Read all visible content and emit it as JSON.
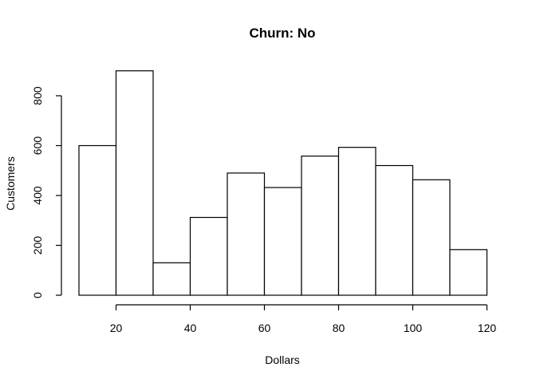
{
  "chart_data": {
    "type": "bar",
    "title": "Churn: No",
    "xlabel": "Dollars",
    "ylabel": "Customers",
    "bins": [
      {
        "start": 10,
        "end": 20,
        "count": 600
      },
      {
        "start": 20,
        "end": 30,
        "count": 900
      },
      {
        "start": 30,
        "end": 40,
        "count": 130
      },
      {
        "start": 40,
        "end": 50,
        "count": 312
      },
      {
        "start": 50,
        "end": 60,
        "count": 490
      },
      {
        "start": 60,
        "end": 70,
        "count": 432
      },
      {
        "start": 70,
        "end": 80,
        "count": 558
      },
      {
        "start": 80,
        "end": 90,
        "count": 593
      },
      {
        "start": 90,
        "end": 100,
        "count": 520
      },
      {
        "start": 100,
        "end": 110,
        "count": 463
      },
      {
        "start": 110,
        "end": 120,
        "count": 183
      }
    ],
    "xticks": [
      20,
      40,
      60,
      80,
      100,
      120
    ],
    "yticks": [
      0,
      200,
      400,
      600,
      800
    ],
    "xlim": [
      20,
      120
    ],
    "ylim": [
      0,
      800
    ],
    "grid": false,
    "legend": "none"
  }
}
